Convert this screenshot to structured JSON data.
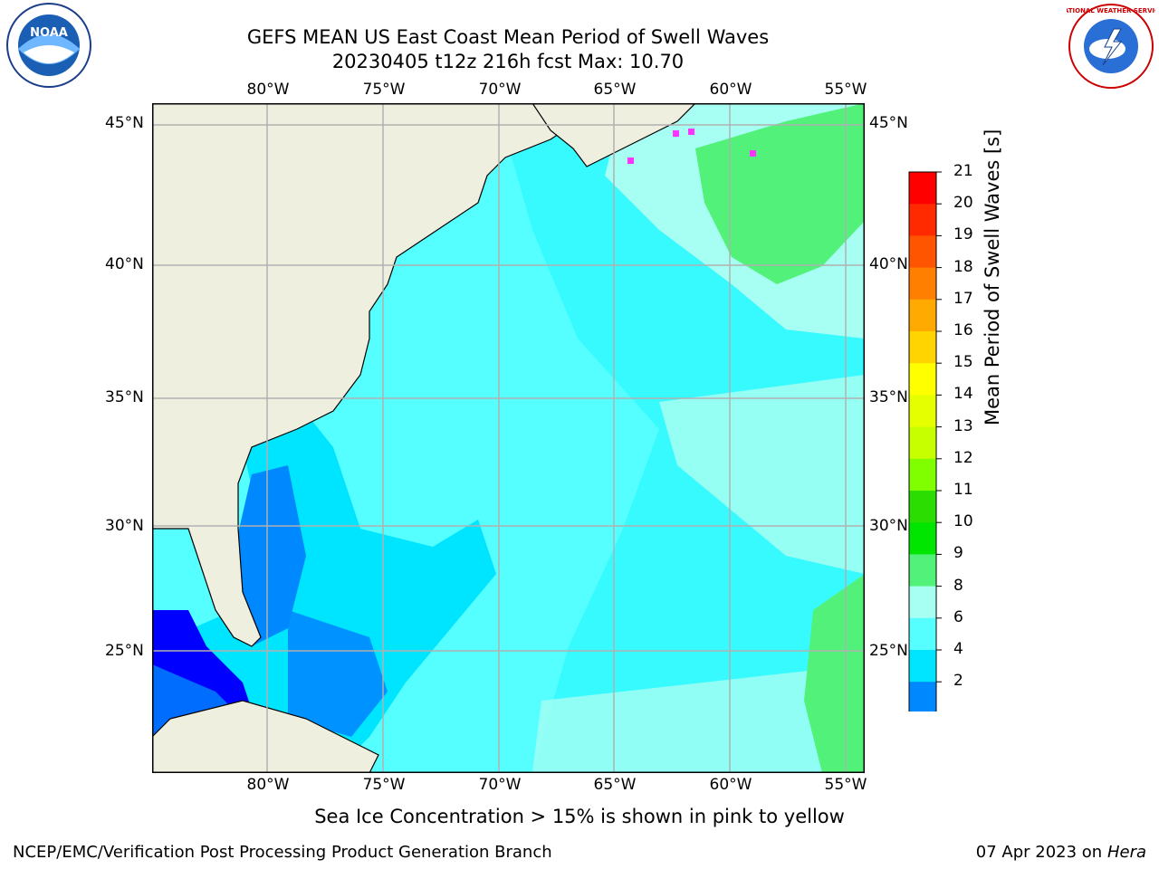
{
  "title": {
    "line1": "GEFS MEAN US East Coast Mean Period of Swell Waves",
    "line2": "20230405 t12z 216h fcst   Max: 10.70"
  },
  "map": {
    "lon_labels": [
      "80°W",
      "75°W",
      "70°W",
      "65°W",
      "60°W",
      "55°W"
    ],
    "lat_labels": [
      "45°N",
      "40°N",
      "35°N",
      "30°N",
      "25°N"
    ],
    "land_color": "#efefdf",
    "grid_color": "#b0b0b0"
  },
  "colorbar": {
    "label": "Mean Period of Swell Waves [s]",
    "ticks": [
      "21",
      "20",
      "19",
      "18",
      "17",
      "16",
      "15",
      "14",
      "13",
      "12",
      "11",
      "10",
      "9",
      "8",
      "6",
      "4",
      "2"
    ],
    "colors": [
      "#ff0000",
      "#ff2a00",
      "#ff5500",
      "#ff7f00",
      "#ffaa00",
      "#ffd400",
      "#ffff00",
      "#e6ff00",
      "#c8ff00",
      "#7fff00",
      "#2bdd00",
      "#00e600",
      "#52f27a",
      "#a6fff2",
      "#55ffff",
      "#00e5ff",
      "#0088ff"
    ],
    "extend_color": "#0000ff"
  },
  "seaice_note": "Sea Ice Concentration > 15% is shown in pink to yellow",
  "footer": {
    "left": "NCEP/EMC/Verification Post Processing Product Generation Branch",
    "date": "07 Apr 2023 on ",
    "host": "Hera"
  },
  "logos": {
    "noaa_text": "NOAA",
    "nws_text": "NATIONAL WEATHER SERVICE"
  }
}
